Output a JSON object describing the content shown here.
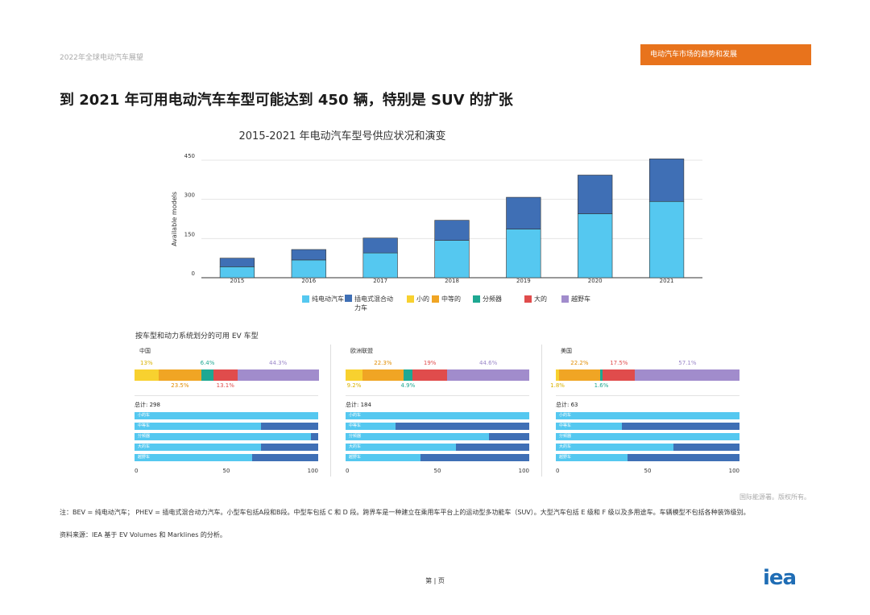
{
  "header": {
    "report_title": "2022年全球电动汽车展望",
    "section_badge": "电动汽车市场的趋势和发展",
    "headline": "到 2021 年可用电动汽车车型可能达到 450 辆，特别是 SUV 的扩张"
  },
  "colors": {
    "bev": "#55c8f0",
    "phev": "#3f6fb5",
    "small": "#f8d12f",
    "medium": "#f0a524",
    "crossover": "#1ea892",
    "large": "#e04c4c",
    "suv": "#a18ccc",
    "badge": "#e8731c",
    "logo": "#1f6db5"
  },
  "chart_data": [
    {
      "type": "bar",
      "stacked": true,
      "title": "2015-2021 年电动汽车型号供应状况和演变",
      "ylabel": "Available models",
      "xlabel": "",
      "categories": [
        "2015",
        "2016",
        "2017",
        "2018",
        "2019",
        "2020",
        "2021"
      ],
      "series": [
        {
          "name": "纯电动汽车",
          "values": [
            42,
            68,
            95,
            143,
            186,
            245,
            292
          ]
        },
        {
          "name": "插电式混合动力车",
          "values": [
            33,
            40,
            57,
            77,
            122,
            148,
            163
          ]
        }
      ],
      "ylim": [
        0,
        450
      ],
      "yticks": [
        "0",
        "150",
        "300",
        "450"
      ],
      "grid": true
    },
    {
      "type": "stacked-bar-panels",
      "title": "按车型和动力系统划分的可用 EV 车型",
      "segment_order": [
        "小的",
        "中等的",
        "分频器",
        "大的",
        "越野车"
      ],
      "row_labels": [
        "小的车",
        "中等车",
        "分频器",
        "大的车",
        "越野车"
      ],
      "xticks": [
        "0",
        "50",
        "100"
      ],
      "panels": [
        {
          "name": "中国",
          "total": "总计: 298",
          "shares": [
            13.0,
            23.5,
            6.4,
            13.1,
            44.3
          ],
          "labels_top": [
            {
              "text": "13%",
              "seg": 0
            },
            {
              "text": "6.4%",
              "seg": 2
            },
            {
              "text": "44.3%",
              "seg": 4
            }
          ],
          "labels_bottom": [
            {
              "text": "23.5%",
              "seg": 1
            },
            {
              "text": "13.1%",
              "seg": 3
            }
          ],
          "bev_share": [
            100,
            69,
            96,
            69,
            64
          ]
        },
        {
          "name": "欧洲联盟",
          "total": "总计: 184",
          "shares": [
            9.2,
            22.3,
            4.9,
            19.0,
            44.6
          ],
          "labels_top": [
            {
              "text": "22.3%",
              "seg": 1
            },
            {
              "text": "19%",
              "seg": 3
            },
            {
              "text": "44.6%",
              "seg": 4
            }
          ],
          "labels_bottom": [
            {
              "text": "9.2%",
              "seg": 0
            },
            {
              "text": "4.9%",
              "seg": 2
            }
          ],
          "bev_share": [
            100,
            27,
            78,
            60,
            41
          ]
        },
        {
          "name": "美国",
          "total": "总计: 63",
          "shares": [
            1.8,
            22.2,
            1.6,
            17.5,
            57.1
          ],
          "labels_top": [
            {
              "text": "22.2%",
              "seg": 1
            },
            {
              "text": "17.5%",
              "seg": 3
            },
            {
              "text": "57.1%",
              "seg": 4
            }
          ],
          "labels_bottom": [
            {
              "text": "1.8%",
              "seg": 0
            },
            {
              "text": "1.6%",
              "seg": 2
            }
          ],
          "bev_share": [
            100,
            36,
            100,
            64,
            39
          ]
        }
      ]
    }
  ],
  "legend": {
    "items": [
      {
        "label": "纯电动汽车",
        "color": "#55c8f0"
      },
      {
        "label": "插电式混合动力车",
        "color": "#3f6fb5"
      },
      {
        "label": "小的",
        "color": "#f8d12f"
      },
      {
        "label": "中等的",
        "color": "#f0a524"
      },
      {
        "label": "分频器",
        "color": "#1ea892"
      },
      {
        "label": "大的",
        "color": "#e04c4c"
      },
      {
        "label": "越野车",
        "color": "#a18ccc"
      }
    ]
  },
  "footer": {
    "credit": "国际能源署。版权所有。",
    "note": "注：BEV = 纯电动汽车； PHEV = 插电式混合动力汽车。小型车包括A段和B段。中型车包括 C 和 D 段。跨界车是一种建立在乘用车平台上的运动型多功能车（SUV）。大型汽车包括 E 级和 F 级以及多用途车。车辆模型不包括各种装饰级别。",
    "source": "资料来源：IEA 基于 EV Volumes 和 Marklines 的分析。",
    "page": "第 | 页",
    "logo": "iea"
  }
}
